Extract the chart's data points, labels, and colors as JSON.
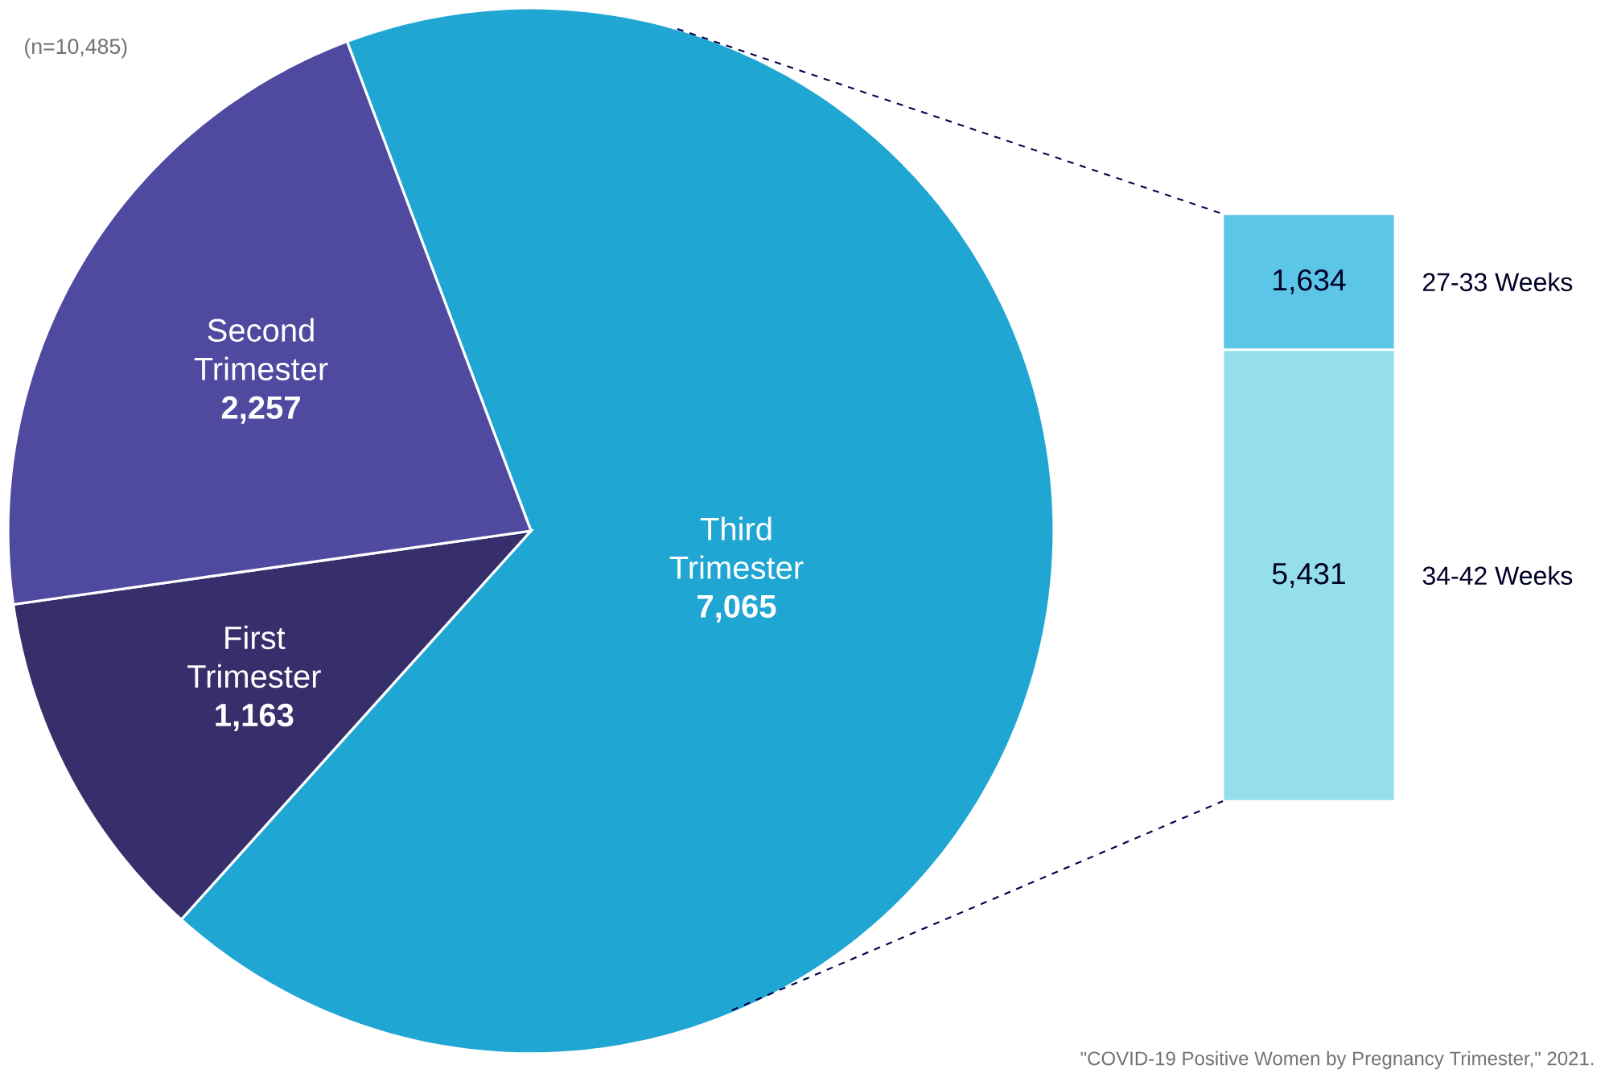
{
  "chart_data": [
    {
      "type": "pie",
      "categories": [
        "Third Trimester",
        "First Trimester",
        "Second Trimester"
      ],
      "values": [
        7065,
        1163,
        2257
      ],
      "colors": [
        "#20a6d3",
        "#372f6b",
        "#5049a0"
      ],
      "value_labels": [
        "7,065",
        "1,163",
        "2,257"
      ],
      "annotations": [
        "(n=10,485)",
        "\"COVID-19 Positive Women by Pregnancy Trimester,\" 2021."
      ]
    },
    {
      "type": "bar",
      "stacked": true,
      "categories": [
        null
      ],
      "series": [
        {
          "name": "34-42 Weeks",
          "color": "#95dfed",
          "values": [
            5431
          ],
          "value_labels": [
            "5,431"
          ]
        },
        {
          "name": "27-33 Weeks",
          "color": "#5cc6e8",
          "values": [
            1634
          ],
          "value_labels": [
            "1,634"
          ]
        }
      ]
    }
  ]
}
